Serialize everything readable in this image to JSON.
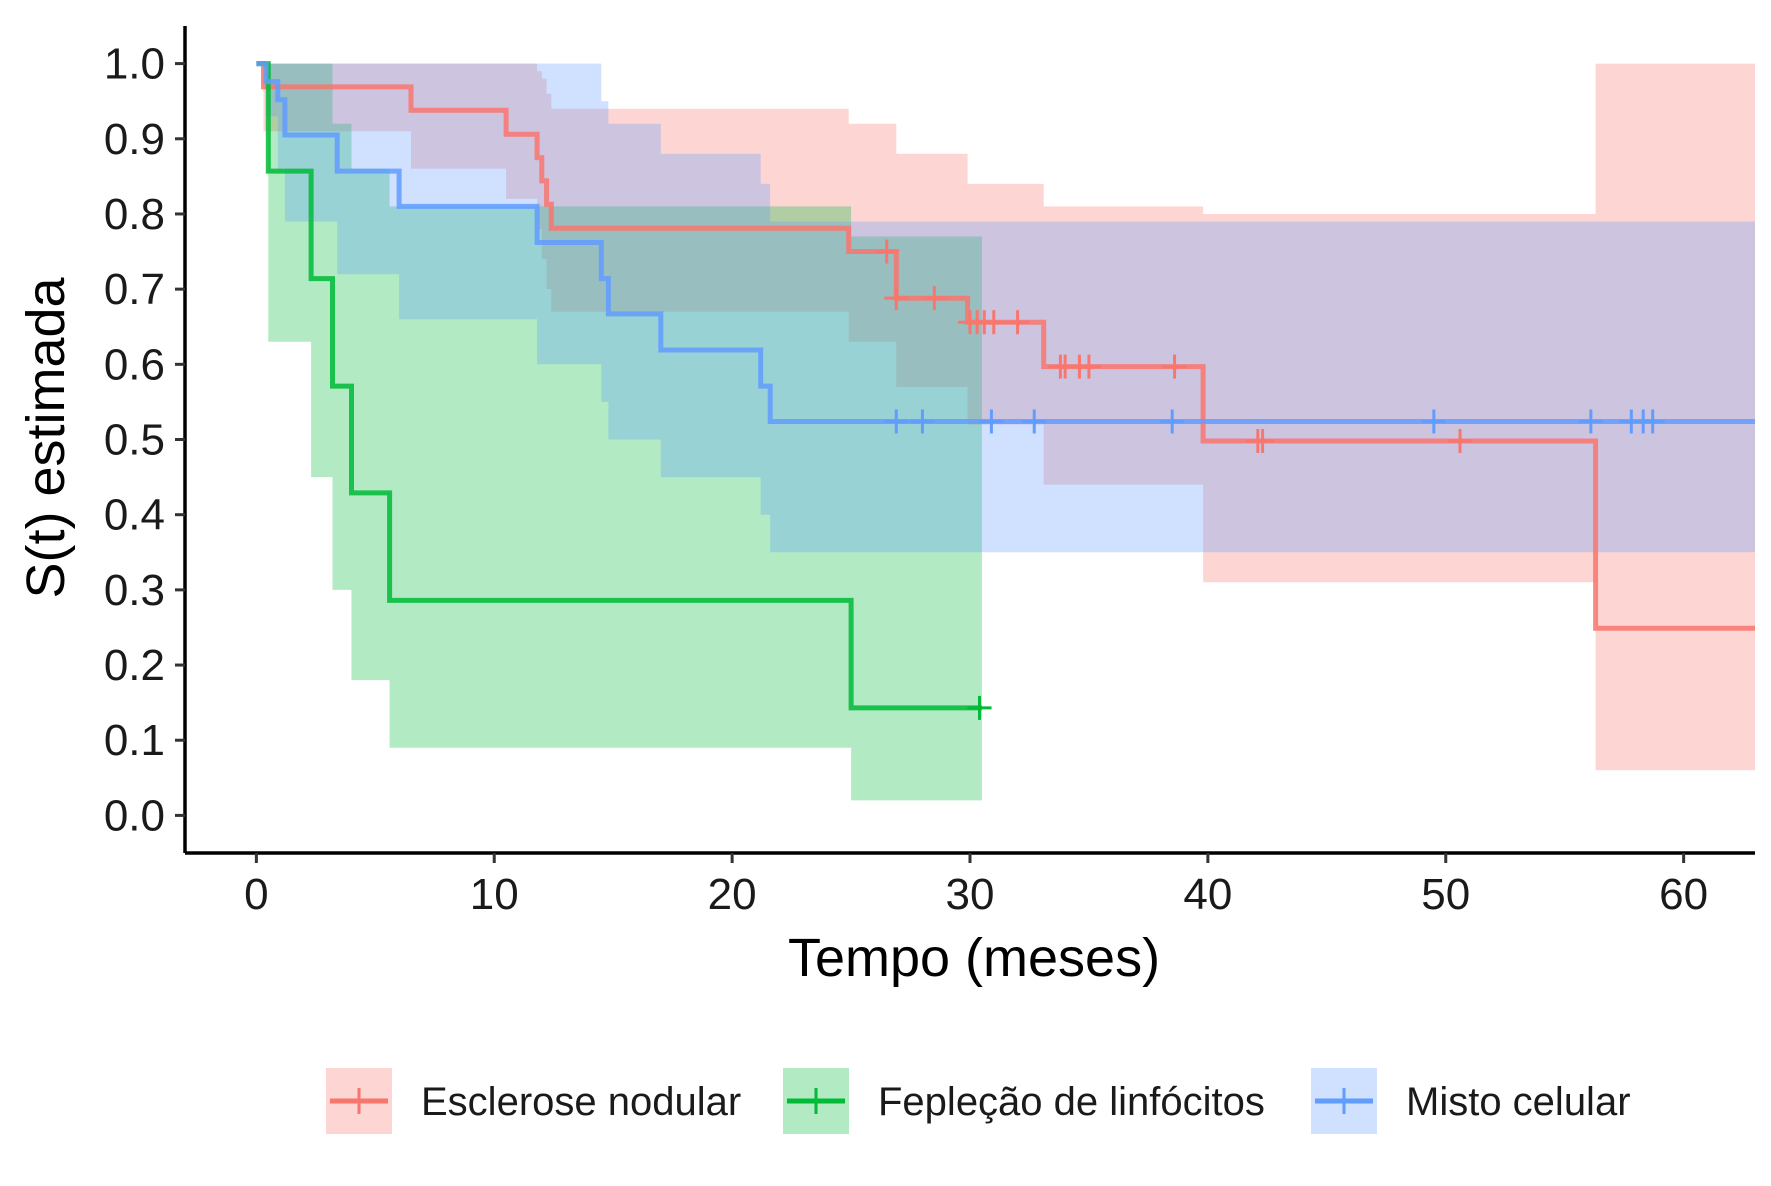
{
  "chart_data": {
    "type": "line",
    "subtype": "kaplan-meier-step",
    "xlabel": "Tempo (meses)",
    "ylabel": "S(t) estimada",
    "xlim": [
      -3,
      63
    ],
    "ylim": [
      -0.05,
      1.05
    ],
    "x_ticks": [
      "0",
      "10",
      "20",
      "30",
      "40",
      "50",
      "60"
    ],
    "x_tick_values": [
      0,
      10,
      20,
      30,
      40,
      50,
      60
    ],
    "y_ticks": [
      "0.0",
      "0.1",
      "0.2",
      "0.3",
      "0.4",
      "0.5",
      "0.6",
      "0.7",
      "0.8",
      "0.9",
      "1.0"
    ],
    "y_tick_values": [
      0,
      0.1,
      0.2,
      0.3,
      0.4,
      0.5,
      0.6,
      0.7,
      0.8,
      0.9,
      1.0
    ],
    "grid": false,
    "legend_position": "bottom",
    "series": [
      {
        "name": "Esclerose nodular",
        "color": "#F8766D",
        "fill_color": "#F8766D",
        "times": [
          0.3,
          6.5,
          10.5,
          11.8,
          12.0,
          12.2,
          12.4,
          17.2,
          24.9,
          26.9,
          29.9,
          33.1,
          39.8,
          56.3
        ],
        "survival": [
          0.969,
          0.938,
          0.906,
          0.875,
          0.844,
          0.813,
          0.781,
          0.781,
          0.75,
          0.688,
          0.656,
          0.597,
          0.498,
          0.249
        ],
        "lower": [
          0.91,
          0.86,
          0.82,
          0.78,
          0.74,
          0.7,
          0.67,
          0.67,
          0.63,
          0.57,
          0.52,
          0.44,
          0.31,
          0.06
        ],
        "upper": [
          1.0,
          1.0,
          1.0,
          0.99,
          0.98,
          0.96,
          0.94,
          0.94,
          0.92,
          0.88,
          0.84,
          0.81,
          0.8,
          1.0
        ],
        "end_x": 63,
        "censor_times": [
          26.5,
          26.9,
          28.5,
          30.0,
          30.3,
          30.6,
          31.0,
          32.0,
          33.8,
          34.0,
          34.6,
          35.0,
          38.6,
          42.1,
          42.3,
          50.6
        ]
      },
      {
        "name": "Fepleção de linfócitos",
        "color": "#00BA38",
        "fill_color": "#00BA38",
        "times": [
          0.5,
          2.3,
          3.2,
          4.0,
          5.6,
          25.0
        ],
        "survival": [
          0.857,
          0.714,
          0.571,
          0.429,
          0.286,
          0.143
        ],
        "lower": [
          0.63,
          0.45,
          0.3,
          0.18,
          0.09,
          0.02
        ],
        "upper": [
          1.0,
          1.0,
          0.92,
          0.86,
          0.81,
          0.77
        ],
        "end_x": 30.5,
        "censor_times": [
          30.4
        ]
      },
      {
        "name": "Misto celular",
        "color": "#619CFF",
        "fill_color": "#619CFF",
        "times": [
          0.4,
          0.9,
          1.2,
          3.4,
          6.0,
          11.8,
          14.5,
          14.8,
          17.0,
          21.2,
          21.6
        ],
        "survival": [
          0.976,
          0.952,
          0.905,
          0.857,
          0.81,
          0.762,
          0.714,
          0.667,
          0.619,
          0.571,
          0.524
        ],
        "lower": [
          0.93,
          0.86,
          0.79,
          0.72,
          0.66,
          0.6,
          0.55,
          0.5,
          0.45,
          0.4,
          0.35
        ],
        "upper": [
          1.0,
          1.0,
          1.0,
          1.0,
          1.0,
          1.0,
          0.95,
          0.92,
          0.88,
          0.84,
          0.79
        ],
        "end_x": 63,
        "censor_times": [
          26.9,
          28.0,
          30.9,
          32.7,
          38.5,
          49.5,
          56.1,
          57.8,
          58.3,
          58.7
        ]
      }
    ]
  }
}
